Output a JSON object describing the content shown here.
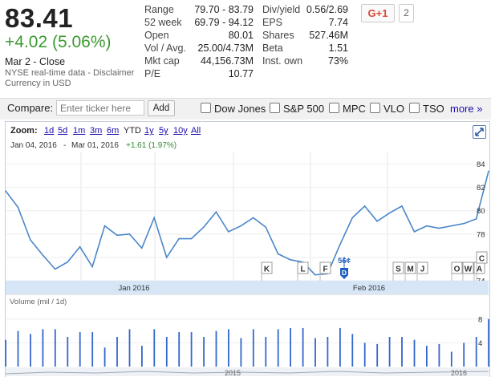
{
  "quote": {
    "price": "83.41",
    "change": "+4.02 (5.06%)",
    "close_label": "Mar 2 - Close",
    "data_source": "NYSE real-time data - Disclaimer",
    "currency": "Currency in USD"
  },
  "stats_left": [
    {
      "label": "Range",
      "value": "79.70 - 83.79"
    },
    {
      "label": "52 week",
      "value": "69.79 - 94.12"
    },
    {
      "label": "Open",
      "value": "80.01"
    },
    {
      "label": "Vol / Avg.",
      "value": "25.00/4.73M"
    },
    {
      "label": "Mkt cap",
      "value": "44,156.73M"
    },
    {
      "label": "P/E",
      "value": "10.77"
    }
  ],
  "stats_right": [
    {
      "label": "Div/yield",
      "value": "0.56/2.69"
    },
    {
      "label": "EPS",
      "value": "7.74"
    },
    {
      "label": "Shares",
      "value": "527.46M"
    },
    {
      "label": "Beta",
      "value": "1.51"
    },
    {
      "label": "Inst. own",
      "value": "73%"
    }
  ],
  "social": {
    "gplus_label": "G+1",
    "gplus_count": "2"
  },
  "compare": {
    "label": "Compare:",
    "placeholder": "Enter ticker here",
    "add_label": "Add",
    "checkboxes": [
      "Dow Jones",
      "S&P 500",
      "MPC",
      "VLO",
      "TSO"
    ],
    "more_label": "more »"
  },
  "zoom": {
    "label": "Zoom:",
    "options": [
      "1d",
      "5d",
      "1m",
      "3m",
      "6m",
      "YTD",
      "1y",
      "5y",
      "10y",
      "All"
    ],
    "selected": "YTD"
  },
  "range": {
    "start": "Jan 04, 2016",
    "separator": "-",
    "end": "Mar 01, 2016",
    "change": "+1.61 (1.97%)"
  },
  "axis": {
    "month_labels": [
      "Jan 2016",
      "Feb 2016"
    ],
    "bottom_labels": [
      "2015",
      "2016"
    ]
  },
  "volume_label": "Volume (mil / 1d)",
  "colors": {
    "price_line": "#4a86c8",
    "volume_bar": "#3366cc",
    "positive": "#3c9a31",
    "link": "#1a0dab"
  },
  "news_markers": [
    "K",
    "L",
    "F",
    "S",
    "M",
    "J",
    "O",
    "W",
    "A",
    "C"
  ],
  "dividend_marker": {
    "letter": "D",
    "label": "56¢"
  },
  "chart_data": {
    "type": "line",
    "title": "",
    "ylim": [
      74,
      85
    ],
    "yticks": [
      84,
      82,
      80,
      78,
      76,
      74
    ],
    "x": [
      "Jan 04",
      "Jan 05",
      "Jan 06",
      "Jan 07",
      "Jan 08",
      "Jan 11",
      "Jan 12",
      "Jan 13",
      "Jan 14",
      "Jan 15",
      "Jan 19",
      "Jan 20",
      "Jan 21",
      "Jan 22",
      "Jan 25",
      "Jan 26",
      "Jan 27",
      "Jan 28",
      "Jan 29",
      "Feb 01",
      "Feb 02",
      "Feb 03",
      "Feb 04",
      "Feb 05",
      "Feb 08",
      "Feb 09",
      "Feb 10",
      "Feb 11",
      "Feb 12",
      "Feb 16",
      "Feb 17",
      "Feb 18",
      "Feb 19",
      "Feb 22",
      "Feb 23",
      "Feb 24",
      "Feb 25",
      "Feb 26",
      "Feb 29",
      "Mar 01"
    ],
    "values": [
      81.7,
      80.3,
      77.5,
      76.2,
      75.0,
      75.6,
      76.9,
      75.2,
      78.7,
      77.9,
      78.0,
      76.8,
      79.4,
      76.0,
      77.6,
      77.6,
      78.6,
      79.9,
      78.2,
      78.7,
      79.4,
      78.6,
      76.3,
      75.8,
      75.6,
      74.5,
      74.6,
      77.1,
      79.4,
      80.4,
      79.1,
      79.8,
      80.4,
      78.2,
      78.7,
      78.5,
      78.7,
      78.9,
      79.3,
      83.4
    ],
    "volume": {
      "ylim": [
        0,
        10
      ],
      "yticks": [
        8,
        4
      ],
      "values": [
        4.5,
        6.0,
        5.5,
        6.3,
        6.3,
        5.0,
        5.8,
        5.8,
        3.2,
        5.0,
        6.3,
        3.5,
        6.3,
        5.0,
        5.8,
        5.8,
        5.0,
        6.0,
        6.3,
        4.8,
        6.3,
        5.0,
        6.3,
        6.5,
        6.5,
        4.8,
        5.0,
        6.5,
        5.5,
        4.0,
        3.8,
        5.0,
        5.0,
        4.5,
        3.5,
        3.8,
        2.5,
        4.0,
        5.0,
        8.0
      ]
    }
  }
}
